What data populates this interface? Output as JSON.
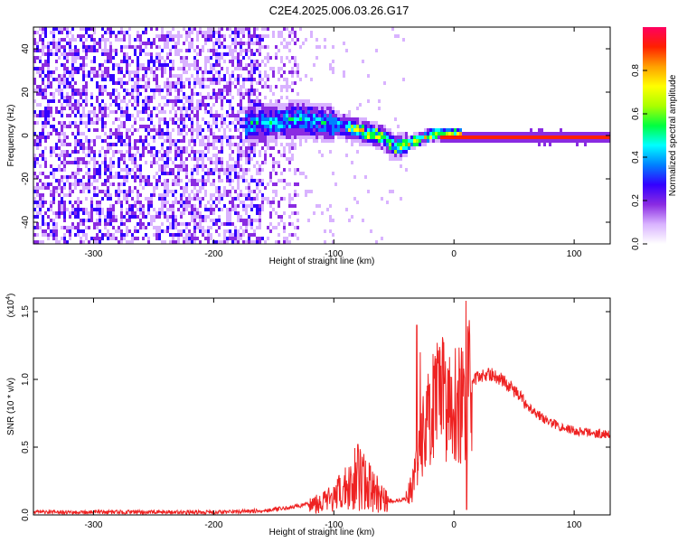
{
  "figure": {
    "title": "C2E4.2025.006.03.26.G17"
  },
  "chart_data": [
    {
      "type": "heatmap",
      "xlabel": "Height of straight line (km)",
      "ylabel": "Frequency (Hz)",
      "xlim": [
        -350,
        130
      ],
      "ylim": [
        -50,
        50
      ],
      "xticks": [
        -300,
        -200,
        -100,
        0,
        100
      ],
      "yticks": [
        -40,
        -20,
        0,
        20,
        40
      ],
      "xtick_labels": [
        "-300",
        "-200",
        "-100",
        "0",
        "100"
      ],
      "ytick_labels": [
        "-40",
        "-20",
        "0",
        "20",
        "40"
      ],
      "colorbar": {
        "label": "Normalized spectral amplitude",
        "range": [
          0,
          1
        ],
        "ticks": [
          0,
          0.2,
          0.4,
          0.6,
          0.8
        ],
        "tick_labels": [
          "0.0",
          "0.2",
          "0.4",
          "0.6",
          "0.8"
        ],
        "colors": [
          "#ffffff",
          "#d9b3ff",
          "#8a2be2",
          "#3300ff",
          "#0080ff",
          "#00ffff",
          "#00ff40",
          "#aaff00",
          "#ffff00",
          "#ffa000",
          "#ff2000",
          "#ff0060"
        ]
      },
      "features": [
        {
          "name": "main-line",
          "x_range": [
            -10,
            130
          ],
          "freq": 0.0,
          "amplitude": 1.0
        },
        {
          "name": "transition-track",
          "points": [
            [
              -170,
              6
            ],
            [
              -130,
              8
            ],
            [
              -100,
              6
            ],
            [
              -80,
              3
            ],
            [
              -60,
              0
            ],
            [
              -50,
              -5
            ],
            [
              -40,
              -3
            ],
            [
              -30,
              -1
            ],
            [
              -20,
              1
            ],
            [
              -10,
              1
            ],
            [
              0,
              1
            ]
          ],
          "amplitude": 0.35
        },
        {
          "name": "noise-region",
          "x_range": [
            -350,
            -130
          ],
          "freq_range": [
            -50,
            50
          ],
          "amplitude": 0.12
        }
      ]
    },
    {
      "type": "line",
      "xlabel": "Height of straight line (km)",
      "ylabel": "SNR (10 * v/v)",
      "y_multiplier": "(x10",
      "y_multiplier_exp": "4",
      "y_multiplier_close": ")",
      "xlim": [
        -350,
        130
      ],
      "ylim": [
        0,
        1.6
      ],
      "xticks": [
        -300,
        -200,
        -100,
        0,
        100
      ],
      "yticks": [
        0,
        0.5,
        1.0,
        1.5
      ],
      "xtick_labels": [
        "-300",
        "-200",
        "-100",
        "0",
        "100"
      ],
      "ytick_labels": [
        "0.0",
        "0.5",
        "1.0",
        "1.5"
      ],
      "color": "#ee2222",
      "envelope": {
        "x": [
          -350,
          -250,
          -200,
          -160,
          -140,
          -120,
          -100,
          -90,
          -80,
          -70,
          -60,
          -50,
          -40,
          -35,
          -30,
          -25,
          -20,
          -15,
          -10,
          -5,
          0,
          5,
          10,
          15,
          20,
          30,
          40,
          50,
          60,
          70,
          80,
          100,
          120,
          130
        ],
        "y": [
          0.02,
          0.02,
          0.02,
          0.03,
          0.05,
          0.08,
          0.12,
          0.2,
          0.3,
          0.2,
          0.12,
          0.1,
          0.12,
          0.2,
          0.45,
          0.6,
          0.75,
          0.8,
          0.85,
          0.88,
          0.85,
          0.8,
          0.9,
          0.97,
          1.02,
          1.04,
          1.0,
          0.92,
          0.82,
          0.74,
          0.68,
          0.62,
          0.6,
          0.6
        ]
      },
      "spikes": [
        {
          "x": -31,
          "y": 1.4
        },
        {
          "x": -28,
          "y": 1.2
        },
        {
          "x": -14,
          "y": 1.27
        },
        {
          "x": -8,
          "y": 0.97
        },
        {
          "x": -3,
          "y": 1.02
        },
        {
          "x": 8,
          "y": 1.08
        },
        {
          "x": 10,
          "y": 1.58
        },
        {
          "x": 10.5,
          "y": 0.04
        },
        {
          "x": -80,
          "y": 0.52
        },
        {
          "x": -75,
          "y": 0.45
        }
      ]
    }
  ]
}
